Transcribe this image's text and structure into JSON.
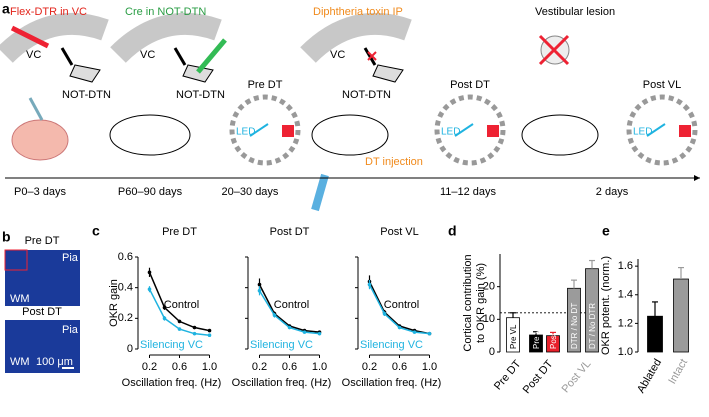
{
  "panel_labels": [
    "a",
    "b",
    "c",
    "d",
    "e"
  ],
  "panel_a": {
    "titles": [
      "Flex-DTR in VC",
      "Cre in NOT-DTN",
      "Diphtheria toxin IP",
      "Vestibular lesion"
    ],
    "vc_labels": [
      "VC",
      "VC",
      "VC"
    ],
    "not_dtn_labels": [
      "NOT-DTN",
      "NOT-DTN",
      "NOT-DTN"
    ],
    "stage_labels": [
      "Pre DT",
      "Post DT",
      "Post VL"
    ],
    "led_labels": [
      "LED",
      "LED",
      "LED"
    ],
    "dt_injection": "DT injection",
    "timeline": [
      "P0–3 days",
      "P60–90 days",
      "20–30 days",
      "11–12 days",
      "2 days"
    ]
  },
  "panel_b": {
    "images": [
      {
        "title": "Pre DT",
        "top": "Pia",
        "bottom": "WM"
      },
      {
        "title": "Post DT",
        "top": "Pia",
        "bottom": "WM",
        "scale_bar": "100 μm"
      }
    ]
  },
  "chart_data": [
    {
      "type": "line",
      "title": "Pre DT",
      "x_label": "Oscillation freq. (Hz)",
      "y_label": "OKR gain",
      "x": [
        0.2,
        0.4,
        0.6,
        0.8,
        1.0
      ],
      "xlim": [
        0.1,
        1.1
      ],
      "xticks": [
        0.2,
        0.6,
        {
          "value": 1,
          "label": "1.0"
        }
      ],
      "ylim": [
        0,
        0.6
      ],
      "yticks": [
        0,
        0.2,
        0.4,
        0.6
      ],
      "series": [
        {
          "name": "Control",
          "color": "#000000",
          "values": [
            0.5,
            0.27,
            0.18,
            0.14,
            0.12
          ],
          "errors": [
            0.03,
            0.015,
            0.01,
            0.01,
            0.01
          ]
        },
        {
          "name": "Silencing VC",
          "color": "#1fb3e0",
          "values": [
            0.39,
            0.2,
            0.13,
            0.1,
            0.09
          ],
          "errors": [
            0.02,
            0.015,
            0.01,
            0.01,
            0.01
          ]
        }
      ]
    },
    {
      "type": "line",
      "title": "Post DT",
      "x_label": "Oscillation freq. (Hz)",
      "x": [
        0.2,
        0.4,
        0.6,
        0.8,
        1.0
      ],
      "xlim": [
        0.1,
        1.1
      ],
      "xticks": [
        0.2,
        0.6,
        {
          "value": 1,
          "label": "1.0"
        }
      ],
      "ylim": [
        0,
        0.6
      ],
      "yticks": [
        0,
        0.2,
        0.4,
        0.6
      ],
      "ytick_labels": false,
      "series": [
        {
          "name": "Control",
          "color": "#000000",
          "values": [
            0.42,
            0.23,
            0.15,
            0.12,
            0.11
          ],
          "errors": [
            0.04,
            0.015,
            0.01,
            0.01,
            0.01
          ]
        },
        {
          "name": "Silencing VC",
          "color": "#1fb3e0",
          "values": [
            0.38,
            0.22,
            0.14,
            0.11,
            0.1
          ],
          "errors": [
            0.03,
            0.015,
            0.01,
            0.01,
            0.01
          ]
        }
      ]
    },
    {
      "type": "line",
      "title": "Post VL",
      "x_label": "Oscillation freq. (Hz)",
      "x": [
        0.2,
        0.4,
        0.6,
        0.8,
        1.0
      ],
      "xlim": [
        0.1,
        1.1
      ],
      "xticks": [
        0.2,
        0.6,
        {
          "value": 1,
          "label": "1.0"
        }
      ],
      "ylim": [
        0,
        0.6
      ],
      "yticks": [
        0,
        0.2,
        0.4,
        0.6
      ],
      "ytick_labels": false,
      "series": [
        {
          "name": "Control",
          "color": "#000000",
          "values": [
            0.44,
            0.24,
            0.15,
            0.12,
            0.1
          ],
          "errors": [
            0.04,
            0.015,
            0.01,
            0.01,
            0.01
          ]
        },
        {
          "name": "Silencing VC",
          "color": "#1fb3e0",
          "values": [
            0.42,
            0.23,
            0.14,
            0.11,
            0.1
          ],
          "errors": [
            0.03,
            0.015,
            0.01,
            0.01,
            0.01
          ]
        }
      ]
    },
    {
      "type": "bar",
      "y_label": [
        "Cortical contribution",
        "to OKR gain (%)"
      ],
      "categories": [
        "Pre VL",
        "Pre VL",
        "Post VL",
        "DTR / No DT",
        "DT / No DTR"
      ],
      "values": [
        10.5,
        5.2,
        5,
        19.5,
        25.5
      ],
      "errors": [
        1.5,
        1,
        1,
        2.5,
        2.5
      ],
      "colors": [
        "#ffffff",
        "#000000",
        "#e8202a",
        "#9b9b9b",
        "#9b9b9b"
      ],
      "groups": [
        "Pre DT",
        "Post DT",
        "Post VL"
      ],
      "group_colors": [
        "#000000",
        "#000000",
        "#9b9b9b"
      ],
      "reference_line": 12,
      "ylim": [
        0,
        30
      ],
      "yticks": [
        0,
        10,
        20
      ]
    },
    {
      "type": "bar",
      "y_label": [
        "OKR potent. (norm.)"
      ],
      "categories": [
        "Ablated",
        "Intact"
      ],
      "values": [
        1.25,
        1.51
      ],
      "errors": [
        0.1,
        0.08
      ],
      "colors": [
        "#000000",
        "#9b9b9b"
      ],
      "label_colors": [
        "#000000",
        "#9b9b9b"
      ],
      "ylim": [
        1,
        1.65
      ],
      "yticks": [
        {
          "value": 1,
          "label": "1.0"
        },
        1.2,
        1.4,
        1.6
      ]
    }
  ]
}
